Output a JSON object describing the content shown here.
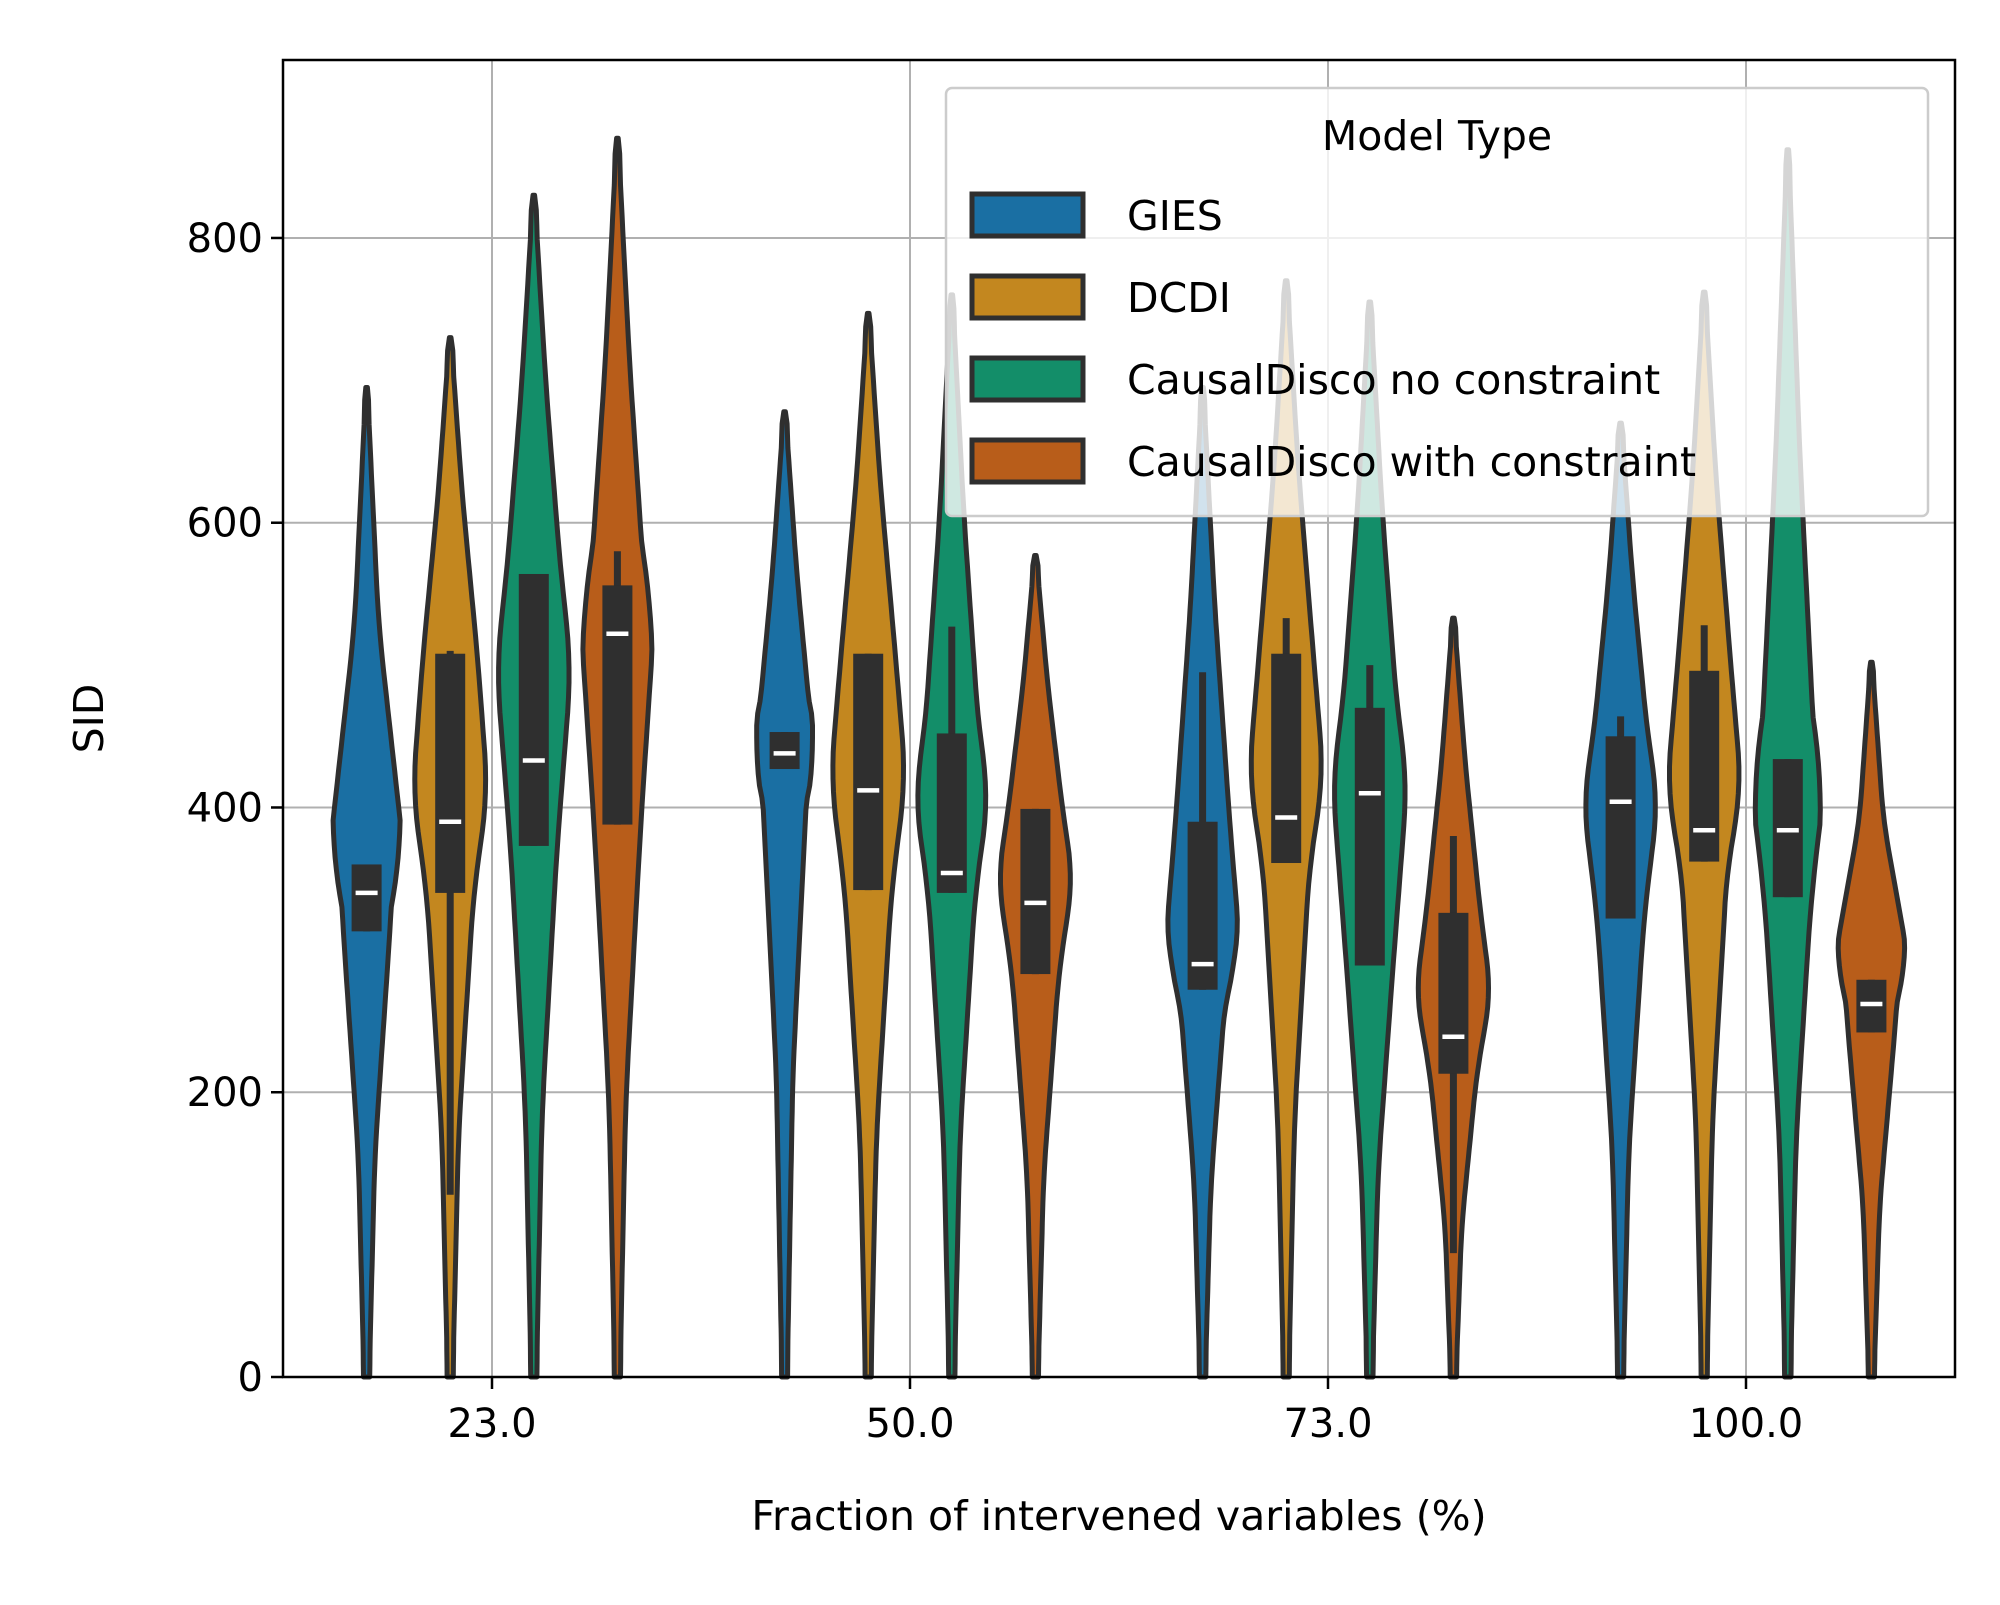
{
  "chart_data": {
    "type": "violin",
    "title": "",
    "xlabel": "Fraction of intervened variables (%)",
    "ylabel": "SID",
    "categories": [
      "23.0",
      "50.0",
      "73.0",
      "100.0"
    ],
    "ylim": [
      0,
      925
    ],
    "yticks": [
      0,
      200,
      400,
      600,
      800
    ],
    "grid": true,
    "legend": {
      "title": "Model Type",
      "placement": "top-right"
    },
    "series": [
      {
        "name": "GIES",
        "color": "#1a6fa3",
        "stats": [
          {
            "min": 0,
            "max": 695,
            "q1": 313,
            "median": 340,
            "q3": 360,
            "whisker_low": 313,
            "whisker_high": 360,
            "mode": 365
          },
          {
            "min": 0,
            "max": 678,
            "q1": 427,
            "median": 438,
            "q3": 453,
            "whisker_low": 427,
            "whisker_high": 453,
            "mode": 440
          },
          {
            "min": 0,
            "max": 695,
            "q1": 272,
            "median": 290,
            "q3": 390,
            "whisker_low": 272,
            "whisker_high": 495,
            "mode": 300
          },
          {
            "min": 0,
            "max": 670,
            "q1": 322,
            "median": 404,
            "q3": 450,
            "whisker_low": 322,
            "whisker_high": 464,
            "mode": 405
          }
        ]
      },
      {
        "name": "DCDI",
        "color": "#c3871f",
        "stats": [
          {
            "min": 0,
            "max": 730,
            "q1": 340,
            "median": 390,
            "q3": 508,
            "whisker_low": 128,
            "whisker_high": 510,
            "mode": 410
          },
          {
            "min": 0,
            "max": 747,
            "q1": 342,
            "median": 412,
            "q3": 508,
            "whisker_low": 342,
            "whisker_high": 508,
            "mode": 420
          },
          {
            "min": 0,
            "max": 770,
            "q1": 361,
            "median": 393,
            "q3": 508,
            "whisker_low": 361,
            "whisker_high": 533,
            "mode": 420
          },
          {
            "min": 0,
            "max": 762,
            "q1": 362,
            "median": 384,
            "q3": 496,
            "whisker_low": 362,
            "whisker_high": 528,
            "mode": 410
          }
        ]
      },
      {
        "name": "CausalDisco no constraint",
        "color": "#138e69",
        "stats": [
          {
            "min": 0,
            "max": 830,
            "q1": 373,
            "median": 433,
            "q3": 564,
            "whisker_low": 373,
            "whisker_high": 564,
            "mode": 500
          },
          {
            "min": 0,
            "max": 760,
            "q1": 340,
            "median": 354,
            "q3": 452,
            "whisker_low": 340,
            "whisker_high": 527,
            "mode": 410
          },
          {
            "min": 0,
            "max": 755,
            "q1": 289,
            "median": 410,
            "q3": 470,
            "whisker_low": 289,
            "whisker_high": 500,
            "mode": 420
          },
          {
            "min": 0,
            "max": 862,
            "q1": 337,
            "median": 384,
            "q3": 434,
            "whisker_low": 337,
            "whisker_high": 434,
            "mode": 420
          }
        ]
      },
      {
        "name": "CausalDisco with constraint",
        "color": "#b85d1a",
        "stats": [
          {
            "min": 0,
            "max": 870,
            "q1": 388,
            "median": 522,
            "q3": 556,
            "whisker_low": 388,
            "whisker_high": 580,
            "mode": 540
          },
          {
            "min": 0,
            "max": 577,
            "q1": 283,
            "median": 333,
            "q3": 399,
            "whisker_low": 283,
            "whisker_high": 399,
            "mode": 350
          },
          {
            "min": 0,
            "max": 533,
            "q1": 213,
            "median": 239,
            "q3": 326,
            "whisker_low": 87,
            "whisker_high": 380,
            "mode": 270
          },
          {
            "min": 0,
            "max": 502,
            "q1": 242,
            "median": 262,
            "q3": 279,
            "whisker_low": 242,
            "whisker_high": 279,
            "mode": 290
          }
        ]
      }
    ]
  }
}
